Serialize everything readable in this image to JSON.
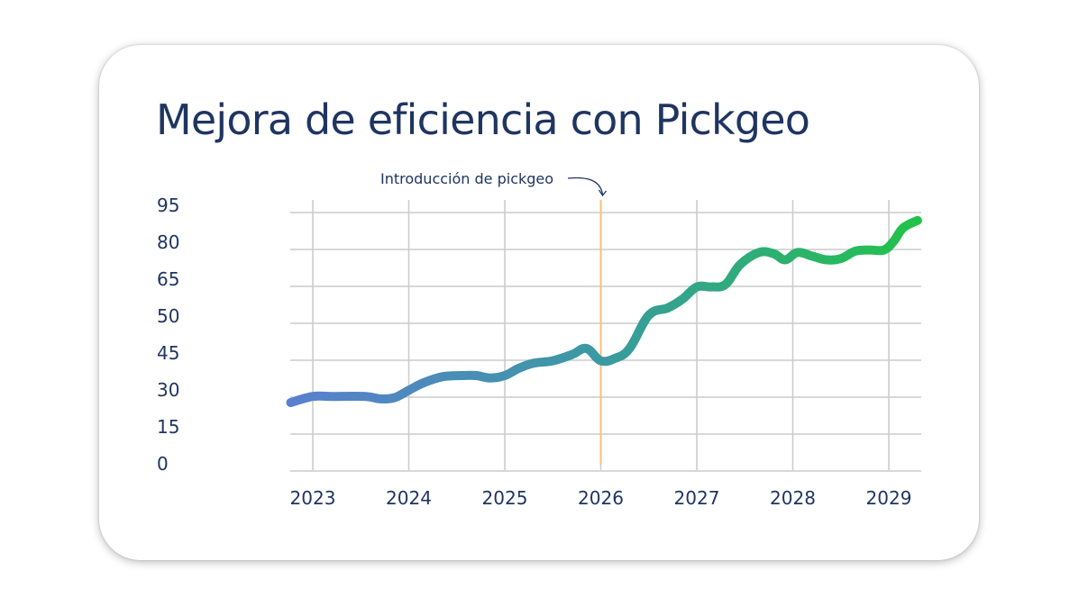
{
  "chart_data": {
    "type": "line",
    "title": "Mejora de eficiencia con Pickgeo",
    "xlabel": "",
    "ylabel": "",
    "x_ticks": [
      "2023",
      "2024",
      "2025",
      "2026",
      "2027",
      "2028",
      "2029"
    ],
    "y_ticks": [
      "95",
      "80",
      "65",
      "50",
      "45",
      "30",
      "15",
      "0"
    ],
    "grid": true,
    "legend": "none",
    "colors": {
      "line_start": "#5a7fcf",
      "line_mid": "#3a9aa0",
      "line_end": "#22c24a",
      "grid": "#cccccc",
      "marker_line": "#f7c07a",
      "text": "#1f3561"
    },
    "annotation": {
      "text": "Introducción de pickgeo",
      "x": "2026"
    },
    "series": [
      {
        "x": [
          2022.77,
          2023.0,
          2023.2,
          2023.55,
          2023.7,
          2023.85,
          2024.0,
          2024.15,
          2024.35,
          2024.55,
          2024.7,
          2024.85,
          2025.0,
          2025.15,
          2025.3,
          2025.5,
          2025.7,
          2025.85,
          2026.0,
          2026.15,
          2026.3,
          2026.5,
          2026.7,
          2026.85,
          2027.0,
          2027.15,
          2027.3,
          2027.45,
          2027.65,
          2027.8,
          2027.92,
          2028.05,
          2028.2,
          2028.35,
          2028.5,
          2028.65,
          2028.8,
          2028.95,
          2029.05,
          2029.15,
          2029.3
        ],
        "y": [
          24.5,
          27.0,
          27.0,
          27.0,
          26.0,
          26.5,
          29.5,
          32.5,
          35.0,
          35.5,
          35.5,
          34.5,
          35.5,
          38.5,
          40.5,
          41.5,
          44.0,
          45.5,
          41.5,
          42.5,
          45.5,
          50.0,
          53.0,
          56.5,
          61.5,
          61.5,
          62.5,
          70.5,
          75.5,
          75.0,
          72.5,
          75.5,
          74.0,
          72.5,
          73.0,
          76.0,
          76.5,
          76.5,
          80.0,
          85.5,
          88.5
        ]
      }
    ]
  }
}
